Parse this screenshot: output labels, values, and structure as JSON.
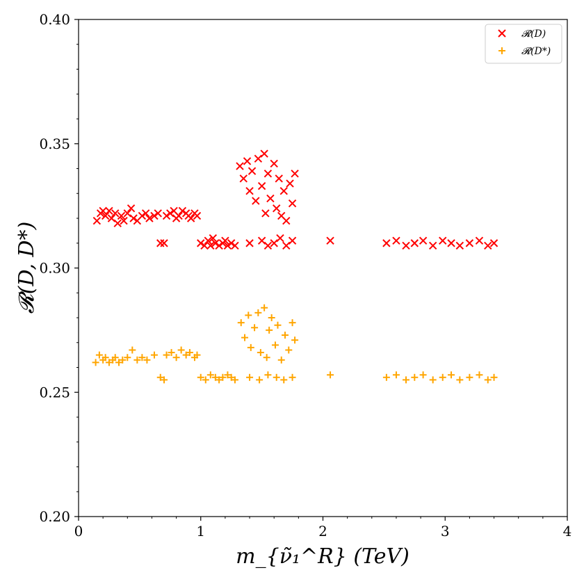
{
  "chart_data": {
    "type": "scatter",
    "title": "",
    "xlabel": "m_{ν̃₁^R} (TeV)",
    "ylabel": "𝓡(D, D*)",
    "xlim": [
      0,
      4
    ],
    "ylim": [
      0.2,
      0.4
    ],
    "xticks": [
      "0",
      "1",
      "2",
      "3",
      "4"
    ],
    "yticks": [
      "0.20",
      "0.25",
      "0.30",
      "0.35",
      "0.40"
    ],
    "grid": false,
    "legend_position": "top-right",
    "series": [
      {
        "name": "𝓡(D)",
        "marker": "x",
        "color": "#ff0000",
        "points": [
          [
            0.15,
            0.319
          ],
          [
            0.18,
            0.322
          ],
          [
            0.2,
            0.323
          ],
          [
            0.22,
            0.321
          ],
          [
            0.25,
            0.323
          ],
          [
            0.27,
            0.32
          ],
          [
            0.3,
            0.322
          ],
          [
            0.32,
            0.318
          ],
          [
            0.35,
            0.321
          ],
          [
            0.37,
            0.319
          ],
          [
            0.4,
            0.322
          ],
          [
            0.43,
            0.324
          ],
          [
            0.45,
            0.32
          ],
          [
            0.48,
            0.319
          ],
          [
            0.52,
            0.321
          ],
          [
            0.55,
            0.322
          ],
          [
            0.58,
            0.32
          ],
          [
            0.62,
            0.321
          ],
          [
            0.65,
            0.322
          ],
          [
            0.67,
            0.31
          ],
          [
            0.7,
            0.31
          ],
          [
            0.72,
            0.321
          ],
          [
            0.75,
            0.322
          ],
          [
            0.78,
            0.323
          ],
          [
            0.8,
            0.32
          ],
          [
            0.82,
            0.321
          ],
          [
            0.85,
            0.323
          ],
          [
            0.88,
            0.322
          ],
          [
            0.9,
            0.321
          ],
          [
            0.92,
            0.32
          ],
          [
            0.95,
            0.322
          ],
          [
            0.97,
            0.321
          ],
          [
            1.0,
            0.31
          ],
          [
            1.03,
            0.309
          ],
          [
            1.06,
            0.311
          ],
          [
            1.08,
            0.309
          ],
          [
            1.1,
            0.312
          ],
          [
            1.12,
            0.31
          ],
          [
            1.15,
            0.309
          ],
          [
            1.18,
            0.31
          ],
          [
            1.2,
            0.311
          ],
          [
            1.22,
            0.309
          ],
          [
            1.25,
            0.31
          ],
          [
            1.28,
            0.309
          ],
          [
            1.32,
            0.341
          ],
          [
            1.35,
            0.336
          ],
          [
            1.38,
            0.343
          ],
          [
            1.4,
            0.331
          ],
          [
            1.42,
            0.339
          ],
          [
            1.45,
            0.327
          ],
          [
            1.47,
            0.344
          ],
          [
            1.5,
            0.333
          ],
          [
            1.52,
            0.346
          ],
          [
            1.53,
            0.322
          ],
          [
            1.55,
            0.338
          ],
          [
            1.57,
            0.328
          ],
          [
            1.6,
            0.342
          ],
          [
            1.62,
            0.324
          ],
          [
            1.64,
            0.336
          ],
          [
            1.66,
            0.321
          ],
          [
            1.68,
            0.331
          ],
          [
            1.7,
            0.319
          ],
          [
            1.73,
            0.334
          ],
          [
            1.75,
            0.326
          ],
          [
            1.77,
            0.338
          ],
          [
            1.4,
            0.31
          ],
          [
            1.5,
            0.311
          ],
          [
            1.55,
            0.309
          ],
          [
            1.6,
            0.31
          ],
          [
            1.65,
            0.312
          ],
          [
            1.7,
            0.309
          ],
          [
            1.75,
            0.311
          ],
          [
            2.06,
            0.311
          ],
          [
            2.52,
            0.31
          ],
          [
            2.6,
            0.311
          ],
          [
            2.68,
            0.309
          ],
          [
            2.75,
            0.31
          ],
          [
            2.82,
            0.311
          ],
          [
            2.9,
            0.309
          ],
          [
            2.98,
            0.311
          ],
          [
            3.05,
            0.31
          ],
          [
            3.12,
            0.309
          ],
          [
            3.2,
            0.31
          ],
          [
            3.28,
            0.311
          ],
          [
            3.35,
            0.309
          ],
          [
            3.4,
            0.31
          ]
        ]
      },
      {
        "name": "𝓡(D*)",
        "marker": "+",
        "color": "#ffa500",
        "points": [
          [
            0.14,
            0.262
          ],
          [
            0.17,
            0.265
          ],
          [
            0.2,
            0.263
          ],
          [
            0.22,
            0.264
          ],
          [
            0.25,
            0.262
          ],
          [
            0.28,
            0.263
          ],
          [
            0.3,
            0.264
          ],
          [
            0.33,
            0.262
          ],
          [
            0.36,
            0.263
          ],
          [
            0.4,
            0.264
          ],
          [
            0.44,
            0.267
          ],
          [
            0.48,
            0.263
          ],
          [
            0.52,
            0.264
          ],
          [
            0.56,
            0.263
          ],
          [
            0.62,
            0.265
          ],
          [
            0.67,
            0.256
          ],
          [
            0.7,
            0.255
          ],
          [
            0.72,
            0.265
          ],
          [
            0.76,
            0.266
          ],
          [
            0.8,
            0.264
          ],
          [
            0.84,
            0.267
          ],
          [
            0.88,
            0.265
          ],
          [
            0.91,
            0.266
          ],
          [
            0.95,
            0.264
          ],
          [
            0.97,
            0.265
          ],
          [
            1.0,
            0.256
          ],
          [
            1.04,
            0.255
          ],
          [
            1.08,
            0.257
          ],
          [
            1.12,
            0.256
          ],
          [
            1.15,
            0.255
          ],
          [
            1.18,
            0.256
          ],
          [
            1.22,
            0.257
          ],
          [
            1.25,
            0.256
          ],
          [
            1.28,
            0.255
          ],
          [
            1.33,
            0.278
          ],
          [
            1.36,
            0.272
          ],
          [
            1.39,
            0.281
          ],
          [
            1.41,
            0.268
          ],
          [
            1.44,
            0.276
          ],
          [
            1.47,
            0.282
          ],
          [
            1.49,
            0.266
          ],
          [
            1.52,
            0.284
          ],
          [
            1.54,
            0.264
          ],
          [
            1.56,
            0.275
          ],
          [
            1.58,
            0.28
          ],
          [
            1.61,
            0.269
          ],
          [
            1.63,
            0.277
          ],
          [
            1.66,
            0.263
          ],
          [
            1.69,
            0.273
          ],
          [
            1.72,
            0.267
          ],
          [
            1.75,
            0.278
          ],
          [
            1.77,
            0.271
          ],
          [
            1.4,
            0.256
          ],
          [
            1.48,
            0.255
          ],
          [
            1.55,
            0.257
          ],
          [
            1.62,
            0.256
          ],
          [
            1.68,
            0.255
          ],
          [
            1.75,
            0.256
          ],
          [
            2.06,
            0.257
          ],
          [
            2.52,
            0.256
          ],
          [
            2.6,
            0.257
          ],
          [
            2.68,
            0.255
          ],
          [
            2.75,
            0.256
          ],
          [
            2.82,
            0.257
          ],
          [
            2.9,
            0.255
          ],
          [
            2.98,
            0.256
          ],
          [
            3.05,
            0.257
          ],
          [
            3.12,
            0.255
          ],
          [
            3.2,
            0.256
          ],
          [
            3.28,
            0.257
          ],
          [
            3.35,
            0.255
          ],
          [
            3.4,
            0.256
          ]
        ]
      }
    ]
  }
}
